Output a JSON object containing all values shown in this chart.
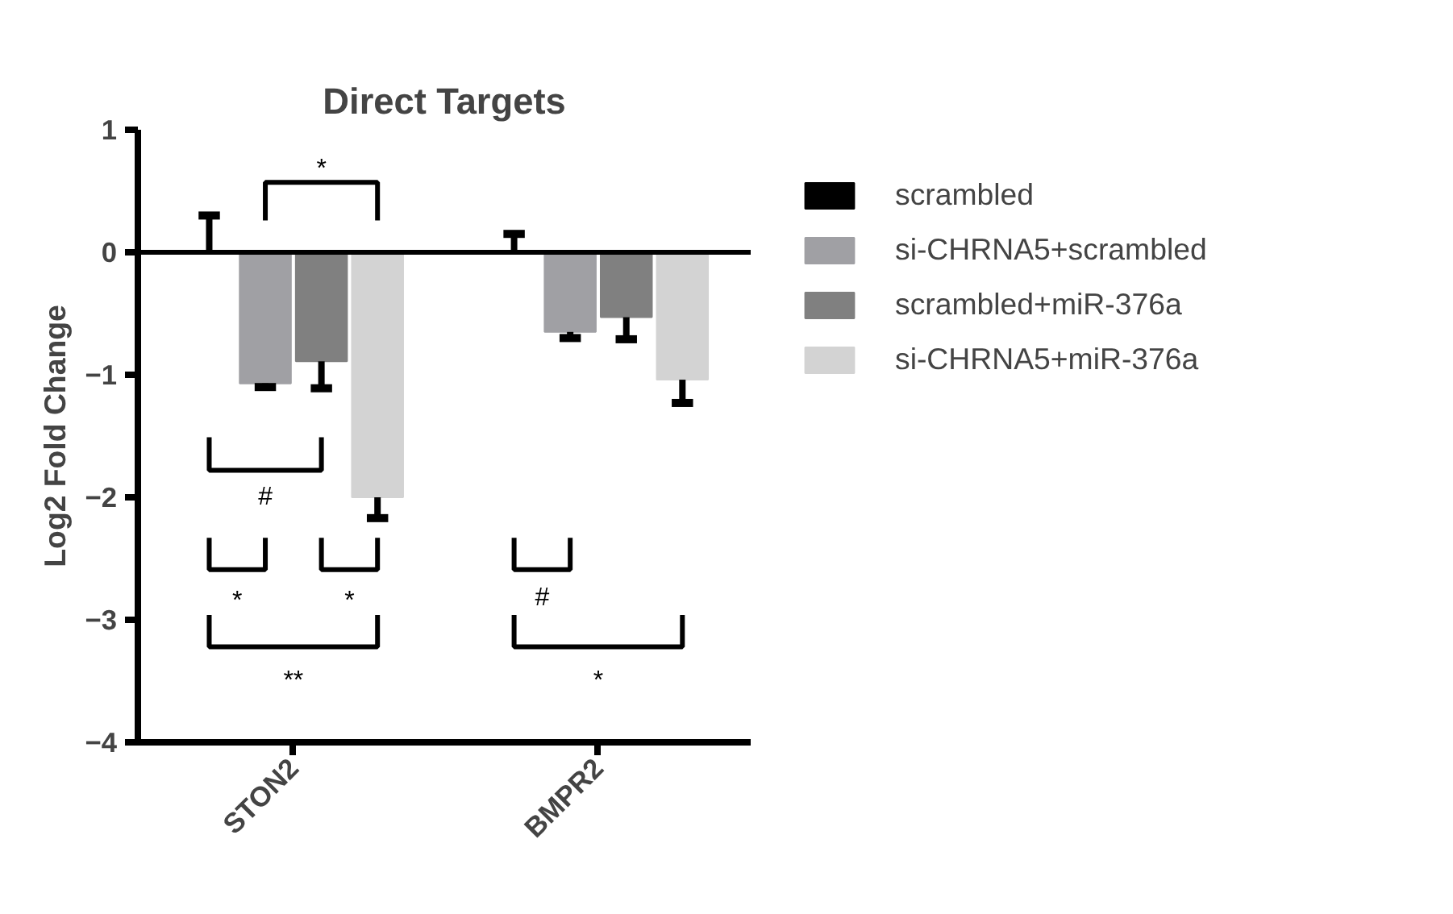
{
  "chart_data": {
    "type": "bar",
    "title": "Direct Targets",
    "ylabel": "Log2 Fold Change",
    "categories": [
      "STON2",
      "BMPR2"
    ],
    "series": [
      {
        "name": "scrambled",
        "color": "#000000",
        "values": [
          0,
          0
        ],
        "errors": [
          [
            0,
            0.3
          ],
          [
            0,
            0.15
          ]
        ]
      },
      {
        "name": "si-CHRNA5+scrambled",
        "color": "#a0a0a4",
        "values": [
          -1.07,
          -0.65
        ],
        "errors": [
          [
            -1.1,
            -1.07
          ],
          [
            -0.7,
            -0.65
          ]
        ]
      },
      {
        "name": "scrambled+miR-376a",
        "color": "#808080",
        "values": [
          -0.89,
          -0.53
        ],
        "errors": [
          [
            -1.11,
            -0.89
          ],
          [
            -0.71,
            -0.53
          ]
        ]
      },
      {
        "name": "si-CHRNA5+miR-376a",
        "color": "#d3d3d3",
        "values": [
          -2.0,
          -1.04
        ],
        "errors": [
          [
            -2.17,
            -2.0
          ],
          [
            -1.23,
            -1.04
          ]
        ]
      }
    ],
    "ylim": [
      -4,
      1
    ],
    "yticks": [
      -4,
      -3,
      -2,
      -1,
      0,
      1
    ],
    "grid": false,
    "legend": "right",
    "ref_lines": [
      {
        "axis": "y",
        "value": 0
      }
    ],
    "annotations": [
      "*",
      "#",
      "*",
      "*",
      "#",
      "**",
      "*"
    ]
  }
}
